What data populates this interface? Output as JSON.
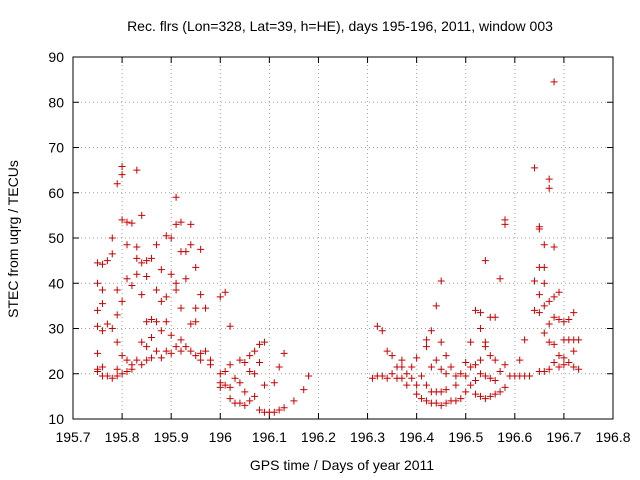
{
  "chart_data": {
    "type": "scatter",
    "title": "Rec. flrs (Lon=328, Lat=39, h=HE), days 195-196, 2011, window 003",
    "xlabel": "GPS time / Days of year 2011",
    "ylabel": "STEC from uqrg / TECUs",
    "xlim": [
      195.7,
      196.8
    ],
    "ylim": [
      10,
      90
    ],
    "xticks": [
      "195.7",
      "195.8",
      "195.9",
      "196",
      "196.1",
      "196.2",
      "196.3",
      "196.4",
      "196.5",
      "196.6",
      "196.7",
      "196.8"
    ],
    "yticks": [
      "10",
      "20",
      "30",
      "40",
      "50",
      "60",
      "70",
      "80",
      "90"
    ],
    "grid": true,
    "marker": "plus",
    "series": [
      {
        "color": "#cc0000",
        "points": [
          [
            195.75,
            44.5
          ],
          [
            195.75,
            40
          ],
          [
            195.75,
            34
          ],
          [
            195.75,
            30.5
          ],
          [
            195.75,
            24.5
          ],
          [
            195.75,
            21
          ],
          [
            195.75,
            20.5
          ],
          [
            195.76,
            44.2
          ],
          [
            195.76,
            38.5
          ],
          [
            195.76,
            35.5
          ],
          [
            195.76,
            29.5
          ],
          [
            195.76,
            21.5
          ],
          [
            195.76,
            19.5
          ],
          [
            195.77,
            45
          ],
          [
            195.77,
            31
          ],
          [
            195.77,
            19.5
          ],
          [
            195.78,
            50
          ],
          [
            195.78,
            46.5
          ],
          [
            195.78,
            30
          ],
          [
            195.78,
            19
          ],
          [
            195.79,
            62
          ],
          [
            195.79,
            38.5
          ],
          [
            195.79,
            33
          ],
          [
            195.79,
            27
          ],
          [
            195.79,
            21
          ],
          [
            195.79,
            19.5
          ],
          [
            195.8,
            65.8
          ],
          [
            195.8,
            64
          ],
          [
            195.8,
            54
          ],
          [
            195.8,
            36
          ],
          [
            195.8,
            24
          ],
          [
            195.8,
            20
          ],
          [
            195.81,
            53.5
          ],
          [
            195.81,
            48.5
          ],
          [
            195.81,
            41
          ],
          [
            195.81,
            23
          ],
          [
            195.81,
            20.5
          ],
          [
            195.82,
            53.3
          ],
          [
            195.82,
            39.5
          ],
          [
            195.82,
            22
          ],
          [
            195.82,
            21
          ],
          [
            195.83,
            65
          ],
          [
            195.83,
            48
          ],
          [
            195.83,
            45.5
          ],
          [
            195.83,
            42
          ],
          [
            195.83,
            23
          ],
          [
            195.84,
            55
          ],
          [
            195.84,
            44.5
          ],
          [
            195.84,
            37.5
          ],
          [
            195.84,
            27
          ],
          [
            195.84,
            22
          ],
          [
            195.85,
            45
          ],
          [
            195.85,
            41.5
          ],
          [
            195.85,
            31.5
          ],
          [
            195.85,
            26
          ],
          [
            195.85,
            23
          ],
          [
            195.86,
            45.5
          ],
          [
            195.86,
            32
          ],
          [
            195.86,
            28
          ],
          [
            195.86,
            23.5
          ],
          [
            195.87,
            48.5
          ],
          [
            195.87,
            38.5
          ],
          [
            195.87,
            31.5
          ],
          [
            195.87,
            25
          ],
          [
            195.88,
            43
          ],
          [
            195.88,
            36
          ],
          [
            195.88,
            29.5
          ],
          [
            195.88,
            23.5
          ],
          [
            195.89,
            50.5
          ],
          [
            195.89,
            37
          ],
          [
            195.89,
            31.5
          ],
          [
            195.89,
            25
          ],
          [
            195.9,
            50
          ],
          [
            195.9,
            42
          ],
          [
            195.9,
            28.5
          ],
          [
            195.9,
            24.5
          ],
          [
            195.91,
            59
          ],
          [
            195.91,
            53
          ],
          [
            195.91,
            40
          ],
          [
            195.91,
            38.5
          ],
          [
            195.91,
            26
          ],
          [
            195.92,
            53.5
          ],
          [
            195.92,
            47
          ],
          [
            195.92,
            34.5
          ],
          [
            195.92,
            27.5
          ],
          [
            195.92,
            25
          ],
          [
            195.93,
            47
          ],
          [
            195.93,
            41
          ],
          [
            195.93,
            26
          ],
          [
            195.94,
            53
          ],
          [
            195.94,
            48.5
          ],
          [
            195.94,
            31
          ],
          [
            195.94,
            25
          ],
          [
            195.95,
            43.5
          ],
          [
            195.95,
            34.5
          ],
          [
            195.95,
            31.5
          ],
          [
            195.95,
            24
          ],
          [
            195.96,
            47.5
          ],
          [
            195.96,
            37.5
          ],
          [
            195.96,
            24.5
          ],
          [
            195.96,
            23
          ],
          [
            195.97,
            34.5
          ],
          [
            195.97,
            25
          ],
          [
            195.98,
            23
          ],
          [
            195.98,
            22
          ],
          [
            196.0,
            37
          ],
          [
            196.0,
            20
          ],
          [
            196.0,
            18
          ],
          [
            196.0,
            17
          ],
          [
            196.01,
            38
          ],
          [
            196.01,
            20.5
          ],
          [
            196.01,
            17.5
          ],
          [
            196.02,
            30.5
          ],
          [
            196.02,
            22
          ],
          [
            196.02,
            17
          ],
          [
            196.02,
            14.5
          ],
          [
            196.03,
            19
          ],
          [
            196.03,
            13.5
          ],
          [
            196.04,
            23
          ],
          [
            196.04,
            18
          ],
          [
            196.04,
            13.5
          ],
          [
            196.05,
            22.5
          ],
          [
            196.05,
            16
          ],
          [
            196.05,
            13
          ],
          [
            196.06,
            24
          ],
          [
            196.06,
            20.5
          ],
          [
            196.06,
            14
          ],
          [
            196.07,
            25
          ],
          [
            196.07,
            20
          ],
          [
            196.07,
            15
          ],
          [
            196.08,
            26.5
          ],
          [
            196.08,
            22.5
          ],
          [
            196.08,
            12
          ],
          [
            196.09,
            27
          ],
          [
            196.09,
            17.5
          ],
          [
            196.09,
            11.5
          ],
          [
            196.1,
            11.5
          ],
          [
            196.11,
            18
          ],
          [
            196.11,
            11.5
          ],
          [
            196.12,
            21.5
          ],
          [
            196.12,
            12
          ],
          [
            196.13,
            24.5
          ],
          [
            196.13,
            12.5
          ],
          [
            196.15,
            14
          ],
          [
            196.17,
            16.5
          ],
          [
            196.18,
            19.5
          ],
          [
            196.31,
            19
          ],
          [
            196.32,
            30.5
          ],
          [
            196.32,
            19.5
          ],
          [
            196.33,
            29.5
          ],
          [
            196.33,
            19.5
          ],
          [
            196.34,
            25
          ],
          [
            196.34,
            19
          ],
          [
            196.35,
            24
          ],
          [
            196.35,
            20
          ],
          [
            196.36,
            21.5
          ],
          [
            196.36,
            19
          ],
          [
            196.37,
            23
          ],
          [
            196.37,
            21.5
          ],
          [
            196.37,
            19
          ],
          [
            196.38,
            20
          ],
          [
            196.38,
            17.5
          ],
          [
            196.39,
            21.5
          ],
          [
            196.39,
            19
          ],
          [
            196.4,
            23.5
          ],
          [
            196.4,
            17.5
          ],
          [
            196.4,
            15.5
          ],
          [
            196.41,
            19.5
          ],
          [
            196.41,
            14.5
          ],
          [
            196.42,
            27.5
          ],
          [
            196.42,
            26
          ],
          [
            196.42,
            17.5
          ],
          [
            196.42,
            14
          ],
          [
            196.43,
            29.5
          ],
          [
            196.43,
            21.5
          ],
          [
            196.43,
            16
          ],
          [
            196.43,
            13.5
          ],
          [
            196.44,
            35
          ],
          [
            196.44,
            23
          ],
          [
            196.44,
            16
          ],
          [
            196.44,
            13.5
          ],
          [
            196.45,
            40.5
          ],
          [
            196.45,
            27
          ],
          [
            196.45,
            21
          ],
          [
            196.45,
            16
          ],
          [
            196.45,
            13
          ],
          [
            196.46,
            24
          ],
          [
            196.46,
            20
          ],
          [
            196.46,
            16.5
          ],
          [
            196.46,
            13.5
          ],
          [
            196.47,
            21.5
          ],
          [
            196.47,
            14
          ],
          [
            196.48,
            19.5
          ],
          [
            196.48,
            17.5
          ],
          [
            196.48,
            14
          ],
          [
            196.49,
            20
          ],
          [
            196.49,
            14.5
          ],
          [
            196.5,
            22.5
          ],
          [
            196.5,
            19.5
          ],
          [
            196.5,
            16
          ],
          [
            196.51,
            27
          ],
          [
            196.51,
            21.5
          ],
          [
            196.51,
            17.5
          ],
          [
            196.52,
            34
          ],
          [
            196.52,
            22
          ],
          [
            196.52,
            18.5
          ],
          [
            196.52,
            15.5
          ],
          [
            196.53,
            33.5
          ],
          [
            196.53,
            30
          ],
          [
            196.53,
            23
          ],
          [
            196.53,
            20
          ],
          [
            196.53,
            15
          ],
          [
            196.54,
            45
          ],
          [
            196.54,
            27
          ],
          [
            196.54,
            26
          ],
          [
            196.54,
            19.5
          ],
          [
            196.54,
            14.5
          ],
          [
            196.55,
            32.5
          ],
          [
            196.55,
            24
          ],
          [
            196.55,
            19
          ],
          [
            196.55,
            15
          ],
          [
            196.56,
            32.5
          ],
          [
            196.56,
            23
          ],
          [
            196.56,
            18.5
          ],
          [
            196.56,
            15.5
          ],
          [
            196.57,
            41
          ],
          [
            196.57,
            20.5
          ],
          [
            196.57,
            16
          ],
          [
            196.58,
            54
          ],
          [
            196.58,
            53
          ],
          [
            196.58,
            22
          ],
          [
            196.58,
            17
          ],
          [
            196.59,
            19.5
          ],
          [
            196.6,
            19.5
          ],
          [
            196.61,
            23
          ],
          [
            196.61,
            19.5
          ],
          [
            196.62,
            27.5
          ],
          [
            196.62,
            19.5
          ],
          [
            196.63,
            19.5
          ],
          [
            196.64,
            65.5
          ],
          [
            196.64,
            40.5
          ],
          [
            196.64,
            34
          ],
          [
            196.65,
            52.5
          ],
          [
            196.65,
            52
          ],
          [
            196.65,
            43.5
          ],
          [
            196.65,
            37.5
          ],
          [
            196.65,
            33.5
          ],
          [
            196.65,
            20.5
          ],
          [
            196.66,
            48.5
          ],
          [
            196.66,
            43.5
          ],
          [
            196.66,
            40
          ],
          [
            196.66,
            35
          ],
          [
            196.66,
            29
          ],
          [
            196.66,
            20.5
          ],
          [
            196.67,
            63
          ],
          [
            196.67,
            61
          ],
          [
            196.67,
            36
          ],
          [
            196.67,
            31
          ],
          [
            196.67,
            27
          ],
          [
            196.67,
            21
          ],
          [
            196.68,
            84.5
          ],
          [
            196.68,
            48
          ],
          [
            196.68,
            37
          ],
          [
            196.68,
            32.5
          ],
          [
            196.68,
            26.5
          ],
          [
            196.68,
            22.5
          ],
          [
            196.69,
            38
          ],
          [
            196.69,
            32
          ],
          [
            196.69,
            24
          ],
          [
            196.69,
            21.5
          ],
          [
            196.7,
            31.5
          ],
          [
            196.7,
            27.5
          ],
          [
            196.7,
            23.5
          ],
          [
            196.7,
            22
          ],
          [
            196.71,
            32
          ],
          [
            196.71,
            27.5
          ],
          [
            196.71,
            22.5
          ],
          [
            196.72,
            33.5
          ],
          [
            196.72,
            27.5
          ],
          [
            196.72,
            25
          ],
          [
            196.72,
            21.5
          ],
          [
            196.73,
            27.5
          ],
          [
            196.73,
            21
          ]
        ]
      }
    ]
  }
}
